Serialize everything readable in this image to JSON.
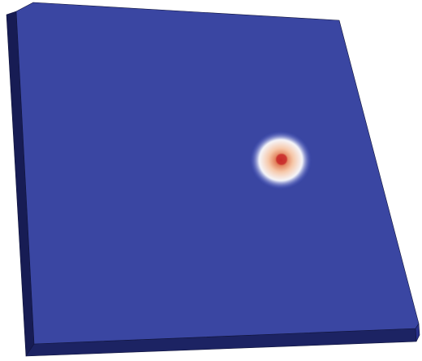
{
  "scene": {
    "background": "#ffffff",
    "object": "slab",
    "colors": {
      "top_face": "#3a46a2",
      "left_face": "#171c54",
      "front_face": "#1c2363",
      "right_face": "#27308a",
      "edge": "#10143c"
    },
    "hotspot": {
      "colormap": [
        "#3b4cc0",
        "#ffffff",
        "#f6c7a8",
        "#e07a55",
        "#c32b2b"
      ],
      "peak_color": "#c92a2a"
    }
  }
}
